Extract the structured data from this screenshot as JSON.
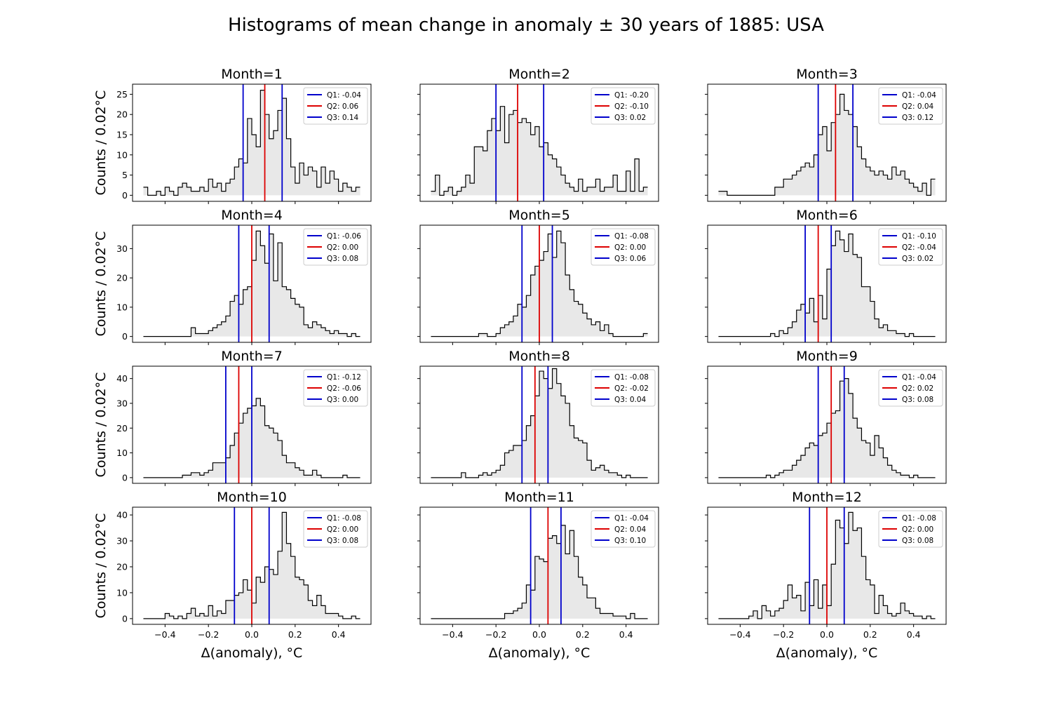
{
  "title": "Histograms of mean change in anomaly ± 30 years of 1885: USA",
  "ylabel": "Counts / 0.02°C",
  "xlabel": "Δ(anomaly), °C",
  "colors": {
    "q1": "#0000cc",
    "q2": "#dd0000",
    "q3": "#0000cc",
    "fill": "#e8e8e8",
    "step": "#000000"
  },
  "chart_data": [
    {
      "type": "histogram",
      "title": "Month=1",
      "ylim": [
        -1.5,
        27.5
      ],
      "yticks": [
        0,
        5,
        10,
        15,
        20,
        25
      ],
      "bin_width": 0.02,
      "x_start": -0.5,
      "counts": [
        2,
        0,
        0,
        1,
        0,
        2,
        1,
        0,
        2,
        3,
        2,
        1,
        1,
        2,
        1,
        4,
        2,
        3,
        1,
        3,
        4,
        7,
        9,
        8,
        19,
        15,
        12,
        26,
        20,
        14,
        16,
        21,
        24,
        14,
        7,
        3,
        8,
        5,
        7,
        6,
        2,
        7,
        3,
        6,
        4,
        1,
        3,
        2,
        1,
        2
      ],
      "quartiles": [
        {
          "label": "Q1: -0.04",
          "value": -0.04
        },
        {
          "label": "Q2: 0.06",
          "value": 0.06
        },
        {
          "label": "Q3: 0.14",
          "value": 0.14
        }
      ]
    },
    {
      "type": "histogram",
      "title": "Month=2",
      "ylim": [
        -1.5,
        27.5
      ],
      "yticks": [
        0,
        5,
        10,
        15,
        20,
        25
      ],
      "bin_width": 0.02,
      "x_start": -0.5,
      "counts": [
        1,
        5,
        0,
        1,
        2,
        0,
        1,
        2,
        5,
        3,
        12,
        12,
        11,
        16,
        19,
        16,
        22,
        13,
        20,
        21,
        18,
        19,
        18,
        15,
        17,
        12,
        13,
        10,
        9,
        7,
        5,
        3,
        2,
        1,
        4,
        1,
        2,
        2,
        4,
        1,
        2,
        2,
        5,
        1,
        1,
        6,
        1,
        9,
        1,
        2
      ],
      "quartiles": [
        {
          "label": "Q1: -0.20",
          "value": -0.2
        },
        {
          "label": "Q2: -0.10",
          "value": -0.1
        },
        {
          "label": "Q3: 0.02",
          "value": 0.02
        }
      ]
    },
    {
      "type": "histogram",
      "title": "Month=3",
      "ylim": [
        -1.5,
        27.5
      ],
      "yticks": [
        0,
        5,
        10,
        15,
        20,
        25
      ],
      "bin_width": 0.02,
      "x_start": -0.5,
      "counts": [
        1,
        1,
        0,
        0,
        0,
        0,
        0,
        0,
        0,
        0,
        0,
        0,
        0,
        2,
        2,
        4,
        4,
        5,
        6,
        7,
        8,
        7,
        10,
        15,
        17,
        11,
        18,
        20,
        25,
        21,
        20,
        17,
        12,
        9,
        7,
        6,
        5,
        6,
        5,
        4,
        7,
        5,
        6,
        4,
        3,
        2,
        1,
        3,
        0,
        4
      ],
      "quartiles": [
        {
          "label": "Q1: -0.04",
          "value": -0.04
        },
        {
          "label": "Q2: 0.04",
          "value": 0.04
        },
        {
          "label": "Q3: 0.12",
          "value": 0.12
        }
      ]
    },
    {
      "type": "histogram",
      "title": "Month=4",
      "ylim": [
        -2,
        38
      ],
      "yticks": [
        0,
        10,
        20,
        30
      ],
      "bin_width": 0.02,
      "x_start": -0.5,
      "counts": [
        0,
        0,
        0,
        0,
        0,
        0,
        0,
        0,
        0,
        0,
        0,
        3,
        1,
        1,
        1,
        2,
        3,
        4,
        5,
        7,
        12,
        14,
        11,
        16,
        17,
        26,
        36,
        31,
        25,
        35,
        19,
        32,
        17,
        16,
        13,
        11,
        10,
        4,
        3,
        5,
        4,
        3,
        2,
        1,
        2,
        1,
        1,
        0,
        1,
        0
      ],
      "quartiles": [
        {
          "label": "Q1: -0.06",
          "value": -0.06
        },
        {
          "label": "Q2: 0.00",
          "value": 0.0
        },
        {
          "label": "Q3: 0.08",
          "value": 0.08
        }
      ]
    },
    {
      "type": "histogram",
      "title": "Month=5",
      "ylim": [
        -2,
        38
      ],
      "yticks": [
        0,
        10,
        20,
        30
      ],
      "bin_width": 0.02,
      "x_start": -0.5,
      "counts": [
        0,
        0,
        0,
        0,
        0,
        0,
        0,
        0,
        0,
        0,
        0,
        1,
        1,
        0,
        0,
        1,
        3,
        4,
        5,
        7,
        11,
        10,
        14,
        21,
        24,
        26,
        29,
        35,
        27,
        36,
        32,
        21,
        16,
        12,
        11,
        8,
        6,
        4,
        5,
        2,
        4,
        1,
        0,
        0,
        0,
        0,
        0,
        0,
        0,
        1
      ],
      "quartiles": [
        {
          "label": "Q1: -0.08",
          "value": -0.08
        },
        {
          "label": "Q2: 0.00",
          "value": 0.0
        },
        {
          "label": "Q3: 0.06",
          "value": 0.06
        }
      ]
    },
    {
      "type": "histogram",
      "title": "Month=6",
      "ylim": [
        -2,
        38
      ],
      "yticks": [
        0,
        10,
        20,
        30
      ],
      "bin_width": 0.02,
      "x_start": -0.5,
      "counts": [
        0,
        0,
        0,
        0,
        0,
        0,
        0,
        0,
        0,
        0,
        0,
        0,
        1,
        0,
        2,
        1,
        3,
        5,
        9,
        11,
        8,
        13,
        5,
        14,
        6,
        23,
        31,
        36,
        33,
        29,
        35,
        28,
        27,
        17,
        17,
        12,
        6,
        3,
        4,
        2,
        2,
        1,
        1,
        0,
        1,
        0,
        0,
        0,
        0,
        0
      ],
      "quartiles": [
        {
          "label": "Q1: -0.10",
          "value": -0.1
        },
        {
          "label": "Q2: -0.04",
          "value": -0.04
        },
        {
          "label": "Q3: 0.02",
          "value": 0.02
        }
      ]
    },
    {
      "type": "histogram",
      "title": "Month=7",
      "ylim": [
        -2.3,
        45
      ],
      "yticks": [
        0,
        10,
        20,
        30,
        40
      ],
      "bin_width": 0.02,
      "x_start": -0.5,
      "counts": [
        0,
        0,
        0,
        0,
        0,
        0,
        0,
        0,
        0,
        1,
        1,
        2,
        2,
        1,
        2,
        3,
        6,
        6,
        6,
        8,
        13,
        18,
        22,
        26,
        28,
        29,
        32,
        29,
        21,
        20,
        18,
        15,
        9,
        6,
        6,
        4,
        3,
        1,
        1,
        3,
        1,
        0,
        0,
        0,
        0,
        0,
        1,
        0,
        0,
        0
      ],
      "quartiles": [
        {
          "label": "Q1: -0.12",
          "value": -0.12
        },
        {
          "label": "Q2: -0.06",
          "value": -0.06
        },
        {
          "label": "Q3: 0.00",
          "value": 0.0
        }
      ]
    },
    {
      "type": "histogram",
      "title": "Month=8",
      "ylim": [
        -2.3,
        45
      ],
      "yticks": [
        0,
        10,
        20,
        30,
        40
      ],
      "bin_width": 0.02,
      "x_start": -0.5,
      "counts": [
        0,
        0,
        0,
        0,
        0,
        0,
        0,
        2,
        0,
        0,
        0,
        1,
        2,
        1,
        2,
        3,
        5,
        10,
        11,
        13,
        13,
        15,
        21,
        25,
        33,
        43,
        40,
        36,
        44,
        38,
        33,
        30,
        21,
        16,
        15,
        14,
        7,
        3,
        4,
        5,
        3,
        2,
        2,
        1,
        0,
        1,
        0,
        0,
        0,
        0
      ],
      "quartiles": [
        {
          "label": "Q1: -0.08",
          "value": -0.08
        },
        {
          "label": "Q2: -0.02",
          "value": -0.02
        },
        {
          "label": "Q3: 0.04",
          "value": 0.04
        }
      ]
    },
    {
      "type": "histogram",
      "title": "Month=9",
      "ylim": [
        -2.3,
        45
      ],
      "yticks": [
        0,
        10,
        20,
        30,
        40
      ],
      "bin_width": 0.02,
      "x_start": -0.5,
      "counts": [
        0,
        0,
        0,
        0,
        0,
        0,
        0,
        0,
        0,
        0,
        0,
        1,
        0,
        1,
        2,
        3,
        3,
        5,
        7,
        9,
        12,
        14,
        13,
        17,
        18,
        22,
        26,
        27,
        39,
        40,
        34,
        24,
        20,
        15,
        14,
        9,
        17,
        12,
        8,
        5,
        3,
        2,
        1,
        1,
        0,
        1,
        0,
        0,
        0,
        0
      ],
      "quartiles": [
        {
          "label": "Q1: -0.04",
          "value": -0.04
        },
        {
          "label": "Q2: 0.02",
          "value": 0.02
        },
        {
          "label": "Q3: 0.08",
          "value": 0.08
        }
      ]
    },
    {
      "type": "histogram",
      "title": "Month=10",
      "ylim": [
        -2.2,
        43
      ],
      "yticks": [
        0,
        10,
        20,
        30,
        40
      ],
      "bin_width": 0.02,
      "x_start": -0.5,
      "counts": [
        0,
        0,
        0,
        0,
        0,
        2,
        1,
        0,
        1,
        0,
        2,
        4,
        1,
        2,
        1,
        5,
        1,
        3,
        2,
        7,
        7,
        9,
        10,
        15,
        11,
        6,
        16,
        14,
        20,
        19,
        17,
        26,
        41,
        29,
        24,
        16,
        15,
        13,
        7,
        5,
        9,
        5,
        2,
        2,
        2,
        1,
        0,
        0,
        1,
        0
      ],
      "quartiles": [
        {
          "label": "Q1: -0.08",
          "value": -0.08
        },
        {
          "label": "Q2: 0.00",
          "value": 0.0
        },
        {
          "label": "Q3: 0.08",
          "value": 0.08
        }
      ]
    },
    {
      "type": "histogram",
      "title": "Month=11",
      "ylim": [
        -2.2,
        43
      ],
      "yticks": [
        0,
        10,
        20,
        30,
        40
      ],
      "bin_width": 0.02,
      "x_start": -0.5,
      "counts": [
        0,
        0,
        0,
        0,
        0,
        0,
        0,
        0,
        0,
        0,
        0,
        0,
        0,
        0,
        0,
        0,
        0,
        2,
        2,
        3,
        4,
        6,
        13,
        11,
        24,
        23,
        22,
        31,
        32,
        29,
        36,
        25,
        34,
        24,
        16,
        13,
        8,
        8,
        4,
        2,
        2,
        2,
        1,
        1,
        1,
        0,
        2,
        0,
        0,
        0
      ],
      "quartiles": [
        {
          "label": "Q1: -0.04",
          "value": -0.04
        },
        {
          "label": "Q2: 0.04",
          "value": 0.04
        },
        {
          "label": "Q3: 0.10",
          "value": 0.1
        }
      ]
    },
    {
      "type": "histogram",
      "title": "Month=12",
      "ylim": [
        -2.2,
        43
      ],
      "yticks": [
        0,
        10,
        20,
        30,
        40
      ],
      "bin_width": 0.02,
      "x_start": -0.5,
      "counts": [
        0,
        0,
        0,
        0,
        0,
        0,
        0,
        1,
        3,
        0,
        5,
        3,
        1,
        3,
        4,
        7,
        13,
        8,
        9,
        3,
        14,
        5,
        15,
        4,
        13,
        5,
        21,
        38,
        35,
        29,
        41,
        34,
        35,
        24,
        15,
        13,
        2,
        9,
        5,
        2,
        1,
        2,
        6,
        3,
        2,
        1,
        1,
        0,
        1,
        0
      ],
      "quartiles": [
        {
          "label": "Q1: -0.08",
          "value": -0.08
        },
        {
          "label": "Q2: 0.00",
          "value": 0.0
        },
        {
          "label": "Q3: 0.08",
          "value": 0.08
        }
      ]
    }
  ],
  "xticks": [
    {
      "value": -0.4,
      "label": "−0.4"
    },
    {
      "value": -0.2,
      "label": "−0.2"
    },
    {
      "value": 0.0,
      "label": "0.0"
    },
    {
      "value": 0.2,
      "label": "0.2"
    },
    {
      "value": 0.4,
      "label": "0.4"
    }
  ],
  "xlim": [
    -0.55,
    0.55
  ]
}
